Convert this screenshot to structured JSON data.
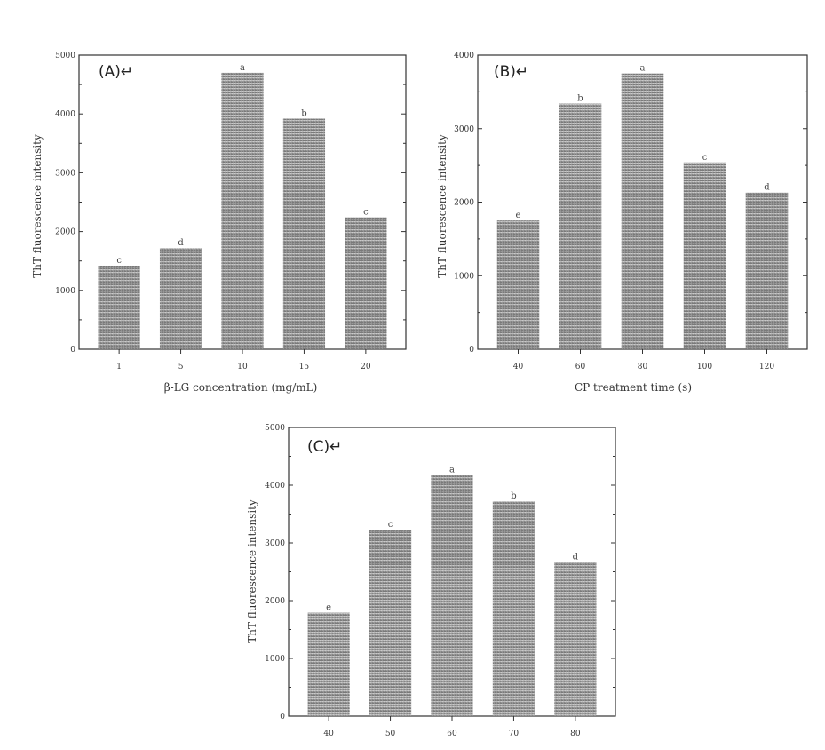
{
  "chart_data": [
    {
      "type": "bar",
      "panel_label": "(A)↵",
      "ylabel": "ThT fluorescence intensity",
      "xlabel": "β-LG concentration (mg/mL)",
      "ylim": [
        0,
        5000
      ],
      "yticks": [
        0,
        1000,
        2000,
        3000,
        4000,
        5000
      ],
      "yticks_labels": [
        "0",
        "1000",
        "2000",
        "3000",
        "4000",
        "5000"
      ],
      "categories": [
        "1",
        "5",
        "10",
        "15",
        "20"
      ],
      "values": [
        1420,
        1720,
        4700,
        3920,
        2240
      ],
      "significance": [
        "c",
        "d",
        "a",
        "b",
        "c"
      ]
    },
    {
      "type": "bar",
      "panel_label": "(B)↵",
      "ylabel": "ThT fluorescence intensity",
      "xlabel": "CP treatment time (s)",
      "ylim": [
        0,
        4000
      ],
      "yticks": [
        0,
        1000,
        2000,
        3000,
        4000
      ],
      "yticks_labels": [
        "0",
        "1000",
        "2000",
        "3000",
        "4000"
      ],
      "categories": [
        "40",
        "60",
        "80",
        "100",
        "120"
      ],
      "values": [
        1750,
        3340,
        3750,
        2540,
        2130
      ],
      "significance": [
        "e",
        "b",
        "a",
        "c",
        "d"
      ]
    },
    {
      "type": "bar",
      "panel_label": "(C)↵",
      "ylabel": "ThT fluorescence intensity",
      "xlabel": "",
      "ylim": [
        0,
        5000
      ],
      "yticks": [
        0,
        1000,
        2000,
        3000,
        4000,
        5000
      ],
      "yticks_labels": [
        "0",
        "1000",
        "2000",
        "3000",
        "4000",
        "5000"
      ],
      "categories": [
        "40",
        "50",
        "60",
        "70",
        "80"
      ],
      "values": [
        1790,
        3230,
        4180,
        3720,
        2670
      ],
      "significance": [
        "e",
        "c",
        "a",
        "b",
        "d"
      ]
    }
  ]
}
